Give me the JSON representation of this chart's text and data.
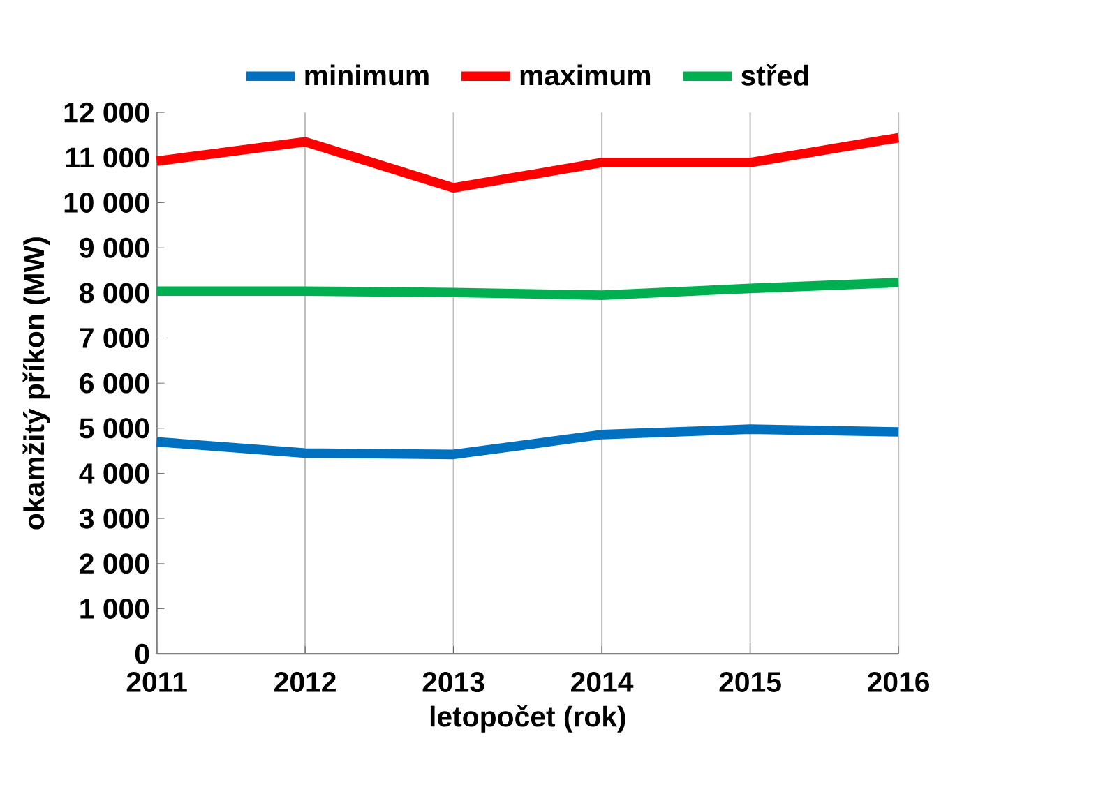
{
  "chart_data": {
    "type": "line",
    "xlabel": "letopočet (rok)",
    "ylabel": "okamžitý příkon (MW)",
    "x": [
      2011,
      2012,
      2013,
      2014,
      2015,
      2016
    ],
    "series": [
      {
        "name": "minimum",
        "color": "#0070c0",
        "values": [
          4700,
          4450,
          4420,
          4860,
          4980,
          4920
        ]
      },
      {
        "name": "maximum",
        "color": "#ff0000",
        "values": [
          10920,
          11350,
          10330,
          10890,
          10890,
          11440
        ]
      },
      {
        "name": "střed",
        "color": "#00b050",
        "values": [
          8040,
          8040,
          8010,
          7950,
          8100,
          8230
        ]
      }
    ],
    "xlim": [
      2011,
      2016
    ],
    "xticks": [
      2011,
      2012,
      2013,
      2014,
      2015,
      2016
    ],
    "ylim": [
      0,
      12000
    ],
    "yticks": [
      0,
      {
        "value": 1000,
        "label": "1 000"
      },
      {
        "value": 2000,
        "label": "2 000"
      },
      {
        "value": 3000,
        "label": "3 000"
      },
      {
        "value": 4000,
        "label": "4 000"
      },
      {
        "value": 5000,
        "label": "5 000"
      },
      {
        "value": 6000,
        "label": "6 000"
      },
      {
        "value": 7000,
        "label": "7 000"
      },
      {
        "value": 8000,
        "label": "8 000"
      },
      {
        "value": 9000,
        "label": "9 000"
      },
      {
        "value": 10000,
        "label": "10 000"
      },
      {
        "value": 11000,
        "label": "11 000"
      },
      {
        "value": 12000,
        "label": "12 000"
      }
    ],
    "grid": "x",
    "legend": "top",
    "marker": "none",
    "line_style": "solid"
  }
}
